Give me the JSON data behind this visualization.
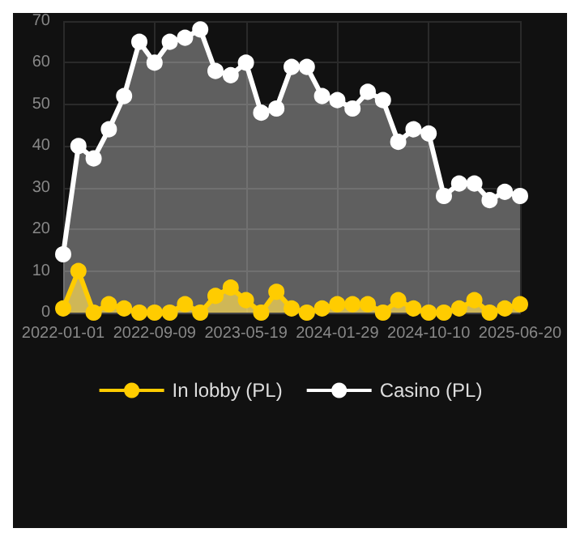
{
  "chart_data": {
    "type": "area",
    "categories": [
      "2022-01-01",
      null,
      null,
      null,
      null,
      null,
      "2022-09-09",
      null,
      null,
      null,
      null,
      null,
      "2023-05-19",
      null,
      null,
      null,
      null,
      null,
      "2024-01-29",
      null,
      null,
      null,
      null,
      null,
      "2024-10-10",
      null,
      null,
      null,
      null,
      null,
      "2025-06-20"
    ],
    "series": [
      {
        "name": "In lobby (PL)",
        "color": "#ffcc00",
        "values": [
          1,
          10,
          0,
          2,
          1,
          0,
          0,
          0,
          2,
          0,
          4,
          6,
          3,
          0,
          5,
          1,
          0,
          1,
          2,
          2,
          2,
          0,
          3,
          1,
          0,
          0,
          1,
          3,
          0,
          1,
          2
        ]
      },
      {
        "name": "Casino (PL)",
        "color": "#ffffff",
        "values": [
          14,
          40,
          37,
          44,
          52,
          65,
          60,
          65,
          66,
          68,
          58,
          57,
          60,
          48,
          49,
          59,
          59,
          52,
          51,
          49,
          53,
          51,
          41,
          44,
          43,
          28,
          31,
          31,
          27,
          29,
          28
        ]
      }
    ],
    "ylim": [
      0,
      70
    ],
    "yticks": [
      0,
      10,
      20,
      30,
      40,
      50,
      60,
      70
    ],
    "grid": true,
    "legend": "bottom",
    "marker": "circle",
    "line_style": "solid"
  }
}
